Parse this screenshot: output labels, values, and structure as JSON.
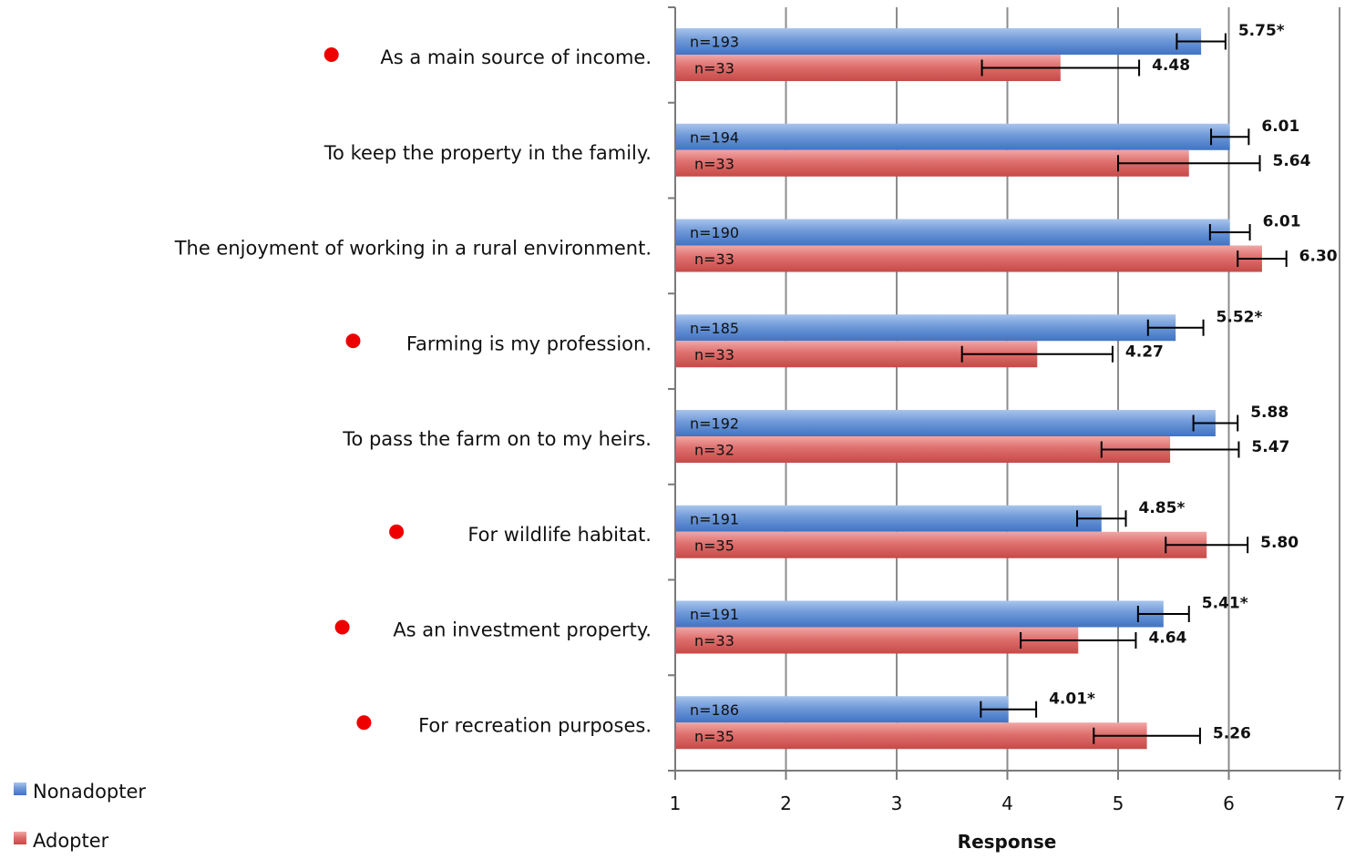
{
  "chart_data": {
    "type": "bar",
    "orientation": "horizontal",
    "xlabel": "Response",
    "xlim": [
      1,
      7
    ],
    "xticks": [
      "1",
      "2",
      "3",
      "4",
      "5",
      "6",
      "7"
    ],
    "grid": true,
    "legend_position": "bottom-left",
    "categories": [
      {
        "label": "As a main source of income.",
        "flagged": true
      },
      {
        "label": "To keep the property in the family.",
        "flagged": false
      },
      {
        "label": "The enjoyment of working in a rural environment.",
        "flagged": false
      },
      {
        "label": "Farming is my profession.",
        "flagged": true
      },
      {
        "label": "To pass the farm on to my heirs.",
        "flagged": false
      },
      {
        "label": "For wildlife habitat.",
        "flagged": true
      },
      {
        "label": "As an investment property.",
        "flagged": true
      },
      {
        "label": "For recreation purposes.",
        "flagged": true
      }
    ],
    "series": [
      {
        "name": "Nonadopter",
        "color": "#4f81bd",
        "values": [
          5.75,
          6.01,
          6.01,
          5.52,
          5.88,
          4.85,
          5.41,
          4.01
        ],
        "value_labels": [
          "5.75*",
          "6.01",
          "6.01",
          "5.52*",
          "5.88",
          "4.85*",
          "5.41*",
          "4.01*"
        ],
        "n_labels": [
          "n=193",
          "n=194",
          "n=190",
          "n=185",
          "n=192",
          "n=191",
          "n=191",
          "n=186"
        ],
        "error": [
          0.22,
          0.17,
          0.18,
          0.25,
          0.2,
          0.22,
          0.23,
          0.25
        ]
      },
      {
        "name": "Adopter",
        "color": "#c0504d",
        "values": [
          4.48,
          5.64,
          6.3,
          4.27,
          5.47,
          5.8,
          4.64,
          5.26
        ],
        "value_labels": [
          "4.48",
          "5.64",
          "6.30",
          "4.27",
          "5.47",
          "5.80",
          "4.64",
          "5.26"
        ],
        "n_labels": [
          "n=33",
          "n=33",
          "n=33",
          "n=33",
          "n=32",
          "n=35",
          "n=33",
          "n=35"
        ],
        "error": [
          0.71,
          0.64,
          0.22,
          0.68,
          0.62,
          0.37,
          0.52,
          0.48
        ]
      }
    ],
    "marker_color": "#ee0000"
  }
}
